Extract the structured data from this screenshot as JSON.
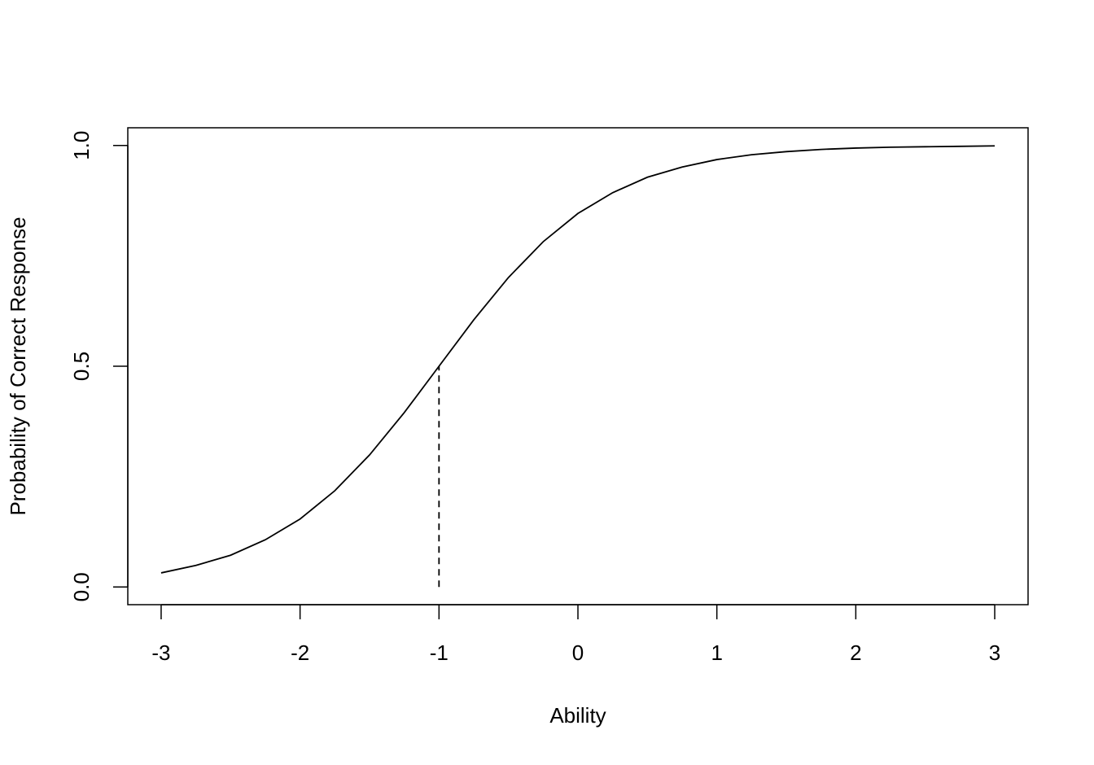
{
  "chart_data": {
    "type": "line",
    "x_label": "Ability",
    "y_label": "Probability of Correct Response",
    "x": [
      -3,
      -2.75,
      -2.5,
      -2.25,
      -2,
      -1.75,
      -1.5,
      -1.25,
      -1,
      -0.75,
      -0.5,
      -0.25,
      0,
      0.25,
      0.5,
      0.75,
      1,
      1.25,
      1.5,
      1.75,
      2,
      2.25,
      2.5,
      2.75,
      3
    ],
    "series": [
      {
        "color": "#000000",
        "values": [
          0.032,
          0.049,
          0.072,
          0.107,
          0.154,
          0.218,
          0.299,
          0.395,
          0.5,
          0.605,
          0.701,
          0.782,
          0.846,
          0.893,
          0.928,
          0.951,
          0.968,
          0.979,
          0.986,
          0.991,
          0.994,
          0.996,
          0.997,
          0.998,
          0.999
        ]
      }
    ],
    "reference_line": {
      "x": -1,
      "ymin": 0,
      "ymax": 0.5,
      "style": "dashed"
    },
    "xlim": [
      -3.24,
      3.24
    ],
    "ylim": [
      -0.04,
      1.04
    ],
    "xticks": [
      -3,
      -2,
      -1,
      0,
      1,
      2,
      3
    ],
    "yticks": [
      {
        "value": 0,
        "label": "0.0"
      },
      {
        "value": 0.5,
        "label": "0.5"
      },
      {
        "value": 1,
        "label": "1.0"
      }
    ],
    "grid": false
  }
}
